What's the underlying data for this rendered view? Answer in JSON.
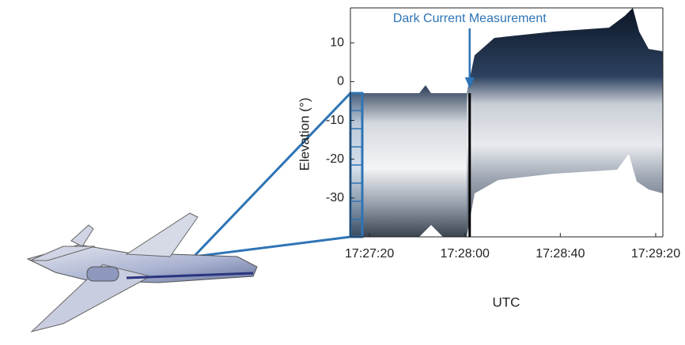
{
  "chart_data": {
    "type": "image",
    "xlabel": "UTC",
    "ylabel": "Elevation (°)",
    "xlim": [
      62832,
      62963
    ],
    "xticks": [
      {
        "value": 62840,
        "label": "17:27:20"
      },
      {
        "value": 62880,
        "label": "17:28:00"
      },
      {
        "value": 62920,
        "label": "17:28:40"
      },
      {
        "value": 62960,
        "label": "17:29:20"
      }
    ],
    "ylim": [
      -40,
      19
    ],
    "yticks": [
      10,
      0,
      -10,
      -20,
      -30
    ],
    "annotation": {
      "text": "Dark Current Measurement",
      "x": 62882,
      "color": "#2e74b5"
    }
  }
}
